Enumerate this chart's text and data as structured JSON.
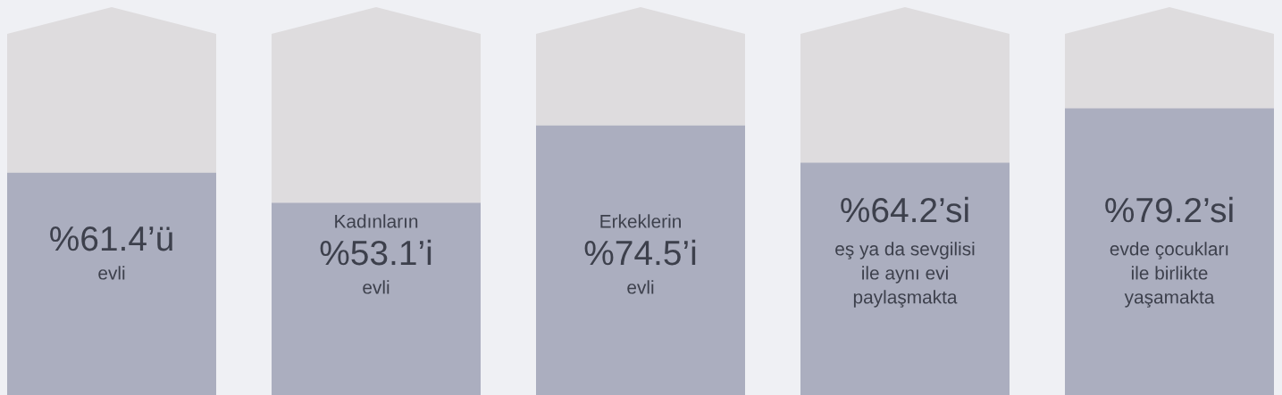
{
  "chart_data": {
    "type": "bar",
    "categories": [
      null,
      "Kadınların",
      "Erkeklerin",
      null,
      null
    ],
    "values": [
      61.4,
      53.1,
      74.5,
      64.2,
      79.2
    ],
    "color": "#abaebf",
    "value_labels": [
      "%61.4’ü",
      "%53.1’i",
      "%74.5’i",
      "%64.2’si",
      "%79.2’si"
    ],
    "annotations": [
      "evli",
      "evli",
      "evli",
      "eş ya da sevgilisi\nile aynı evi\npaylaşmakta",
      "evde çocukları\nile birlikte\nyaşamakta"
    ],
    "tick_labels": false
  }
}
